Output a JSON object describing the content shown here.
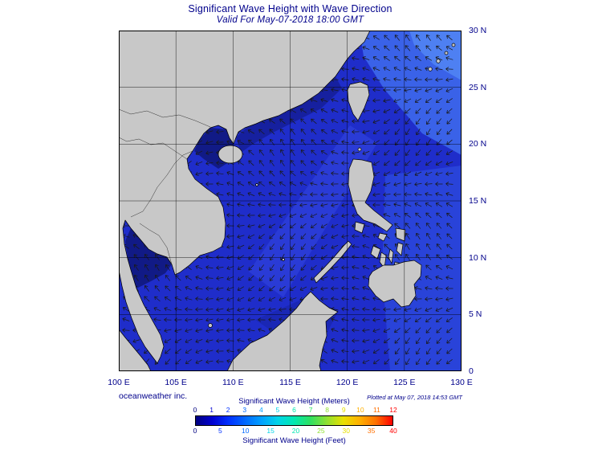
{
  "header": {
    "title": "Significant Wave Height with Wave Direction",
    "subtitle": "Valid For May-07-2018 18:00 GMT"
  },
  "map": {
    "x_axis_labels": [
      "100 E",
      "105 E",
      "110 E",
      "115 E",
      "120 E",
      "125 E",
      "130 E"
    ],
    "y_axis_labels": [
      "30 N",
      "25 N",
      "20 N",
      "15 N",
      "10 N",
      "5 N",
      "0"
    ]
  },
  "footer": {
    "credit": "oceanweather inc.",
    "plotted": "Plotted at May 07, 2018 14:53 GMT"
  },
  "legend": {
    "meters_label": "Significant Wave Height (Meters)",
    "feet_label": "Significant Wave Height (Feet)",
    "meters_ticks": [
      "0",
      "1",
      "2",
      "3",
      "4",
      "5",
      "6",
      "7",
      "8",
      "9",
      "10",
      "11",
      "12"
    ],
    "feet_ticks": [
      "0",
      "5",
      "10",
      "15",
      "20",
      "25",
      "30",
      "35",
      "40"
    ],
    "colors": [
      "#000080",
      "#0000d0",
      "#0030ff",
      "#0068ff",
      "#00a0ff",
      "#00d4e8",
      "#00e8b0",
      "#30e060",
      "#90e030",
      "#e8e000",
      "#ffb000",
      "#ff7000",
      "#ff0000"
    ]
  },
  "palette": {
    "text": "#00008b",
    "land": "#c8c8c8",
    "ocean": "#1f2dca"
  }
}
